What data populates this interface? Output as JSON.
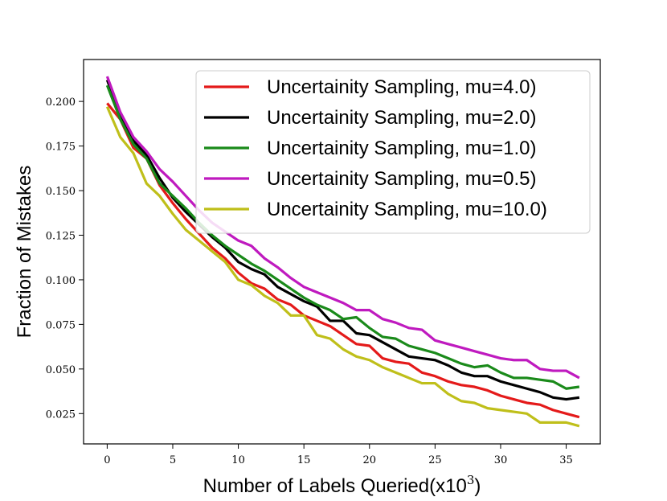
{
  "chart_data": {
    "type": "line",
    "title": "",
    "xlabel": "Number of Labels Queried(x10",
    "xlabel_sup": "3",
    "xlabel_close": ")",
    "ylabel": "Fraction of Mistakes",
    "xlim": [
      -1.8,
      37.6
    ],
    "ylim": [
      0.008,
      0.2235
    ],
    "xticks": [
      0,
      5,
      10,
      15,
      20,
      25,
      30,
      35
    ],
    "xtick_labels": [
      "0",
      "5",
      "10",
      "15",
      "20",
      "25",
      "30",
      "35"
    ],
    "yticks": [
      0.025,
      0.05,
      0.075,
      0.1,
      0.125,
      0.15,
      0.175,
      0.2
    ],
    "ytick_labels": [
      "0.025",
      "0.050",
      "0.075",
      "0.100",
      "0.125",
      "0.150",
      "0.175",
      "0.200"
    ],
    "grid": false,
    "legend_position": "top-right",
    "x": [
      0,
      1,
      2,
      3,
      4,
      5,
      6,
      7,
      8,
      9,
      10,
      11,
      12,
      13,
      14,
      15,
      16,
      17,
      18,
      19,
      20,
      21,
      22,
      23,
      24,
      25,
      26,
      27,
      28,
      29,
      30,
      31,
      32,
      33,
      34,
      35,
      36
    ],
    "series": [
      {
        "name": "Uncertainity Sampling, mu=4.0)",
        "color": "#e41a1a",
        "values": [
          0.199,
          0.19,
          0.174,
          0.168,
          0.153,
          0.143,
          0.134,
          0.126,
          0.118,
          0.112,
          0.104,
          0.098,
          0.095,
          0.089,
          0.086,
          0.08,
          0.077,
          0.074,
          0.069,
          0.064,
          0.063,
          0.056,
          0.054,
          0.053,
          0.048,
          0.046,
          0.043,
          0.041,
          0.04,
          0.038,
          0.035,
          0.033,
          0.031,
          0.03,
          0.027,
          0.025,
          0.023
        ]
      },
      {
        "name": "Uncertainity Sampling, mu=2.0)",
        "color": "#000000",
        "values": [
          0.212,
          0.192,
          0.178,
          0.17,
          0.157,
          0.146,
          0.138,
          0.131,
          0.124,
          0.118,
          0.11,
          0.106,
          0.103,
          0.096,
          0.092,
          0.088,
          0.085,
          0.077,
          0.077,
          0.07,
          0.069,
          0.065,
          0.061,
          0.057,
          0.056,
          0.055,
          0.052,
          0.048,
          0.046,
          0.046,
          0.043,
          0.041,
          0.039,
          0.037,
          0.034,
          0.033,
          0.034
        ]
      },
      {
        "name": "Uncertainity Sampling, mu=1.0)",
        "color": "#1a8a1a",
        "values": [
          0.209,
          0.19,
          0.176,
          0.168,
          0.154,
          0.147,
          0.14,
          0.132,
          0.125,
          0.119,
          0.114,
          0.109,
          0.105,
          0.1,
          0.095,
          0.09,
          0.086,
          0.083,
          0.078,
          0.079,
          0.073,
          0.068,
          0.067,
          0.063,
          0.061,
          0.059,
          0.056,
          0.053,
          0.051,
          0.052,
          0.048,
          0.045,
          0.045,
          0.044,
          0.043,
          0.039,
          0.04
        ]
      },
      {
        "name": "Uncertainity Sampling, mu=0.5)",
        "color": "#bf1abf",
        "values": [
          0.214,
          0.194,
          0.18,
          0.172,
          0.162,
          0.155,
          0.147,
          0.139,
          0.132,
          0.127,
          0.122,
          0.119,
          0.112,
          0.107,
          0.101,
          0.096,
          0.093,
          0.09,
          0.087,
          0.083,
          0.083,
          0.078,
          0.076,
          0.073,
          0.072,
          0.066,
          0.064,
          0.062,
          0.06,
          0.058,
          0.056,
          0.055,
          0.055,
          0.05,
          0.049,
          0.049,
          0.045
        ]
      },
      {
        "name": "Uncertainity Sampling, mu=10.0)",
        "color": "#bfbf1a",
        "values": [
          0.197,
          0.18,
          0.171,
          0.154,
          0.147,
          0.137,
          0.128,
          0.122,
          0.116,
          0.11,
          0.1,
          0.097,
          0.091,
          0.087,
          0.08,
          0.08,
          0.069,
          0.067,
          0.061,
          0.057,
          0.055,
          0.051,
          0.048,
          0.045,
          0.042,
          0.042,
          0.036,
          0.032,
          0.031,
          0.028,
          0.027,
          0.026,
          0.025,
          0.02,
          0.02,
          0.02,
          0.018
        ]
      }
    ]
  }
}
